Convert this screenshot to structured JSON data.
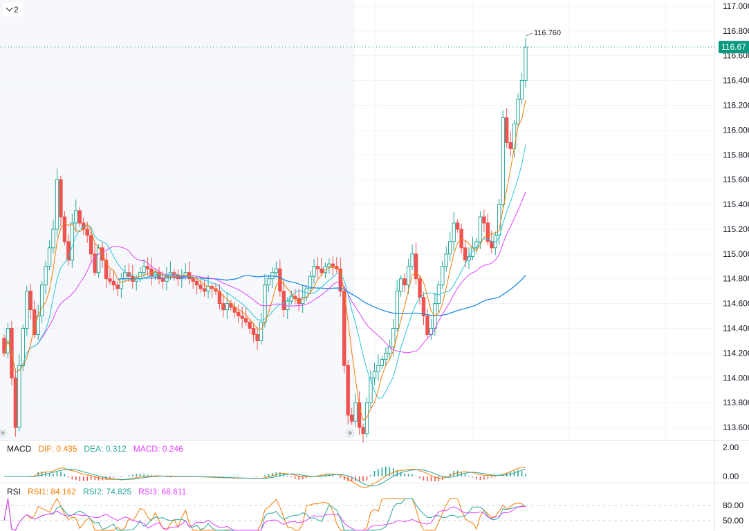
{
  "controls": {
    "collapse_count": "2"
  },
  "main_pane": {
    "price_axis": [
      "117.000",
      "116.800",
      "116.600",
      "116.400",
      "116.200",
      "116.000",
      "115.800",
      "115.600",
      "115.400",
      "115.200",
      "115.000",
      "114.800",
      "114.600",
      "114.400",
      "114.200",
      "114.000",
      "113.800",
      "113.600"
    ],
    "current_price_label": "116.67",
    "high_label": "116.760"
  },
  "macd": {
    "name": "MACD",
    "dif_label": "DIF: 0.435",
    "dea_label": "DEA: 0.312",
    "macd_label": "MACD: 0.246",
    "axis": [
      "2.00",
      "0.00"
    ]
  },
  "rsi": {
    "name": "RSI",
    "rsi1_label": "RSI1: 84.162",
    "rsi2_label": "RSI2: 74.825",
    "rsi3_label": "RSI3: 68.611",
    "axis": [
      "80.00",
      "50.00"
    ]
  },
  "colors": {
    "up": "#26a69a",
    "down": "#ef5350",
    "ma_fast": "#f57c00",
    "ma_mid": "#26c6da",
    "ma_slow": "#e040fb",
    "ma_long": "#1e88e5",
    "grid": "#f0f3fa",
    "axis_text": "#131722"
  },
  "chart_data": {
    "type": "candlestick",
    "ylim": [
      113.5,
      117.05
    ],
    "grid": true,
    "close": [
      114.2,
      114.4,
      114.0,
      113.6,
      114.1,
      114.4,
      114.7,
      114.55,
      114.35,
      114.5,
      114.75,
      114.9,
      115.05,
      115.2,
      115.6,
      115.3,
      115.1,
      114.95,
      115.25,
      115.35,
      115.25,
      115.2,
      115.15,
      115.0,
      114.85,
      115.05,
      114.95,
      114.8,
      114.78,
      114.75,
      114.72,
      114.8,
      114.85,
      114.82,
      114.78,
      114.8,
      114.85,
      114.9,
      114.88,
      114.82,
      114.85,
      114.8,
      114.78,
      114.82,
      114.85,
      114.83,
      114.8,
      114.82,
      114.85,
      114.8,
      114.78,
      114.75,
      114.72,
      114.7,
      114.74,
      114.72,
      114.7,
      114.6,
      114.55,
      114.6,
      114.57,
      114.53,
      114.5,
      114.48,
      114.45,
      114.4,
      114.35,
      114.3,
      114.45,
      114.75,
      114.8,
      114.85,
      114.88,
      114.7,
      114.55,
      114.62,
      114.66,
      114.64,
      114.6,
      114.65,
      114.72,
      114.82,
      114.9,
      114.88,
      114.85,
      114.9,
      114.92,
      114.9,
      114.88,
      114.7,
      114.1,
      113.7,
      113.65,
      113.8,
      113.6,
      113.55,
      113.8,
      114.0,
      114.05,
      114.1,
      114.15,
      114.2,
      114.25,
      114.4,
      114.7,
      114.8,
      114.75,
      114.9,
      115.0,
      114.8,
      114.65,
      114.5,
      114.35,
      114.4,
      114.6,
      114.75,
      114.9,
      115.0,
      115.1,
      115.25,
      115.2,
      115.05,
      114.95,
      114.98,
      115.05,
      115.1,
      115.3,
      115.25,
      115.1,
      115.05,
      115.15,
      115.4,
      116.1,
      115.9,
      115.85,
      116.05,
      116.25,
      116.4,
      116.67
    ]
  }
}
